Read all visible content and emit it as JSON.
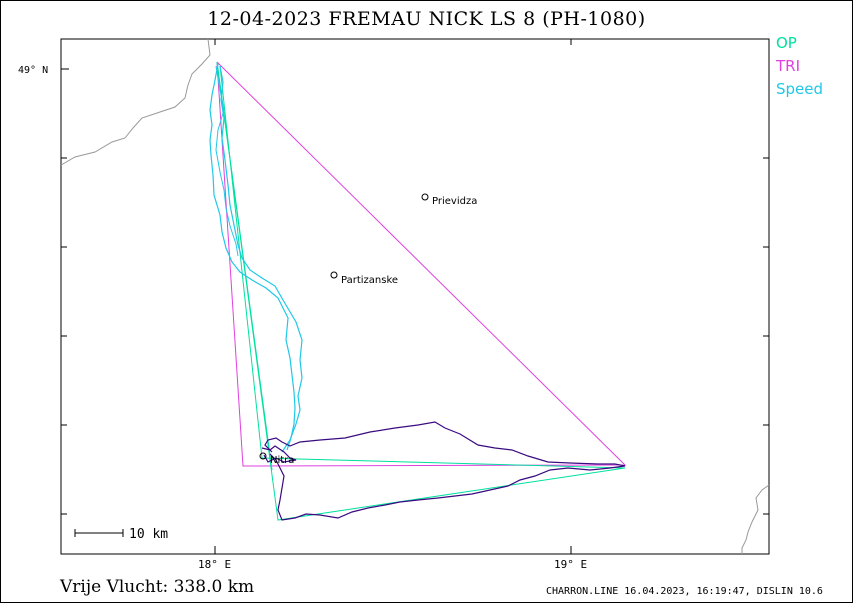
{
  "title": "12-04-2023    FREMAU NICK    LS 8 (PH-1080)",
  "legend": [
    {
      "label": "OP",
      "color": "#00e0a0"
    },
    {
      "label": "TRI",
      "color": "#e040e0"
    },
    {
      "label": "Speed",
      "color": "#20c8e8"
    }
  ],
  "axes": {
    "lat_label": "49° N",
    "lon_labels": [
      "18° E",
      "19° E"
    ]
  },
  "cities": [
    {
      "name": "Prievidza"
    },
    {
      "name": "Partizanske"
    },
    {
      "name": "Nitra"
    }
  ],
  "scale_bar": "10 km",
  "footer": {
    "distance": "Vrije Vlucht:  338.0 km",
    "software": "CHARRON.LINE 16.04.2023, 16:19:47, DISLIN 10.6"
  },
  "colors": {
    "track": "#3a0a80",
    "op": "#00e0a0",
    "tri": "#e040e0",
    "speed": "#20c8e8",
    "border": "#999999"
  }
}
